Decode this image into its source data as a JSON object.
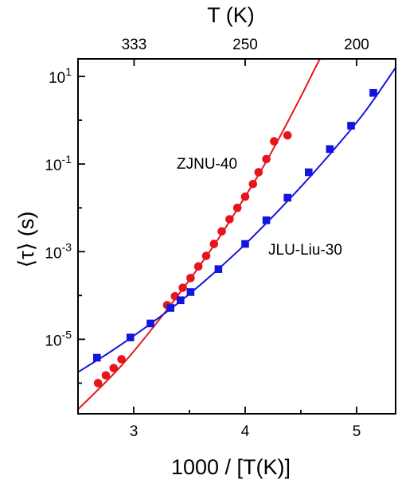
{
  "chart_data": {
    "type": "scatter",
    "title": "",
    "xlabel": "1000 / [T(K)]",
    "ylabel": "⟨τ⟩ (s)",
    "x2label": "T (K)",
    "xlim": [
      2.5,
      5.35
    ],
    "ylim_log10": [
      -6.7,
      1.4
    ],
    "yscale": "log",
    "grid": false,
    "x_ticks": [
      {
        "value": 3,
        "label": "3"
      },
      {
        "value": 4,
        "label": "4"
      },
      {
        "value": 5,
        "label": "5"
      }
    ],
    "x2_ticks": [
      {
        "value": 3.003,
        "label": "333"
      },
      {
        "value": 4.0,
        "label": "250"
      },
      {
        "value": 5.0,
        "label": "200"
      }
    ],
    "y_ticks": [
      {
        "exponent": 1,
        "base": "10",
        "exp": "1"
      },
      {
        "exponent": -1,
        "base": "10",
        "exp": "-1"
      },
      {
        "exponent": -3,
        "base": "10",
        "exp": "-3"
      },
      {
        "exponent": -5,
        "base": "10",
        "exp": "-5"
      }
    ],
    "series": [
      {
        "name": "ZJNU-40",
        "color": "#e8141c",
        "marker": "circle",
        "x": [
          2.68,
          2.75,
          2.82,
          2.89,
          3.3,
          3.37,
          3.44,
          3.51,
          3.58,
          3.65,
          3.72,
          3.79,
          3.86,
          3.93,
          4.0,
          4.07,
          4.12,
          4.19,
          4.26,
          4.38
        ],
        "y": [
          1e-06,
          1.5e-06,
          2.2e-06,
          3.5e-06,
          6e-05,
          9.6e-05,
          0.00015,
          0.00025,
          0.00046,
          0.0008,
          0.0015,
          0.0029,
          0.0055,
          0.01,
          0.018,
          0.035,
          0.065,
          0.13,
          0.33,
          0.45
        ],
        "fit_x": [
          2.5,
          2.9,
          3.3,
          3.7,
          4.1,
          4.3,
          4.5,
          4.65,
          4.7
        ],
        "fit_log10y": [
          -6.6,
          -5.57,
          -4.32,
          -2.93,
          -1.33,
          -0.43,
          0.54,
          1.3,
          1.52
        ]
      },
      {
        "name": "JLU-Liu-30",
        "color": "#1414e0",
        "marker": "square",
        "x": [
          2.67,
          2.97,
          3.15,
          3.33,
          3.42,
          3.51,
          3.76,
          4.0,
          4.19,
          4.38,
          4.57,
          4.76,
          4.95,
          5.15
        ],
        "y": [
          3.8e-06,
          1.1e-05,
          2.3e-05,
          5.2e-05,
          7.8e-05,
          0.00012,
          0.0004,
          0.0015,
          0.0052,
          0.017,
          0.065,
          0.22,
          0.75,
          4.2
        ],
        "fit_x": [
          2.5,
          2.8,
          3.1,
          3.4,
          3.7,
          4.0,
          4.3,
          4.6,
          4.9,
          5.1,
          5.35
        ],
        "fit_log10y": [
          -5.75,
          -5.27,
          -4.74,
          -4.17,
          -3.53,
          -2.83,
          -2.06,
          -1.24,
          -0.36,
          0.28,
          1.2
        ]
      }
    ],
    "annotations": [
      {
        "text": "ZJNU-40",
        "series": 0
      },
      {
        "text": "JLU-Liu-30",
        "series": 1
      }
    ]
  }
}
